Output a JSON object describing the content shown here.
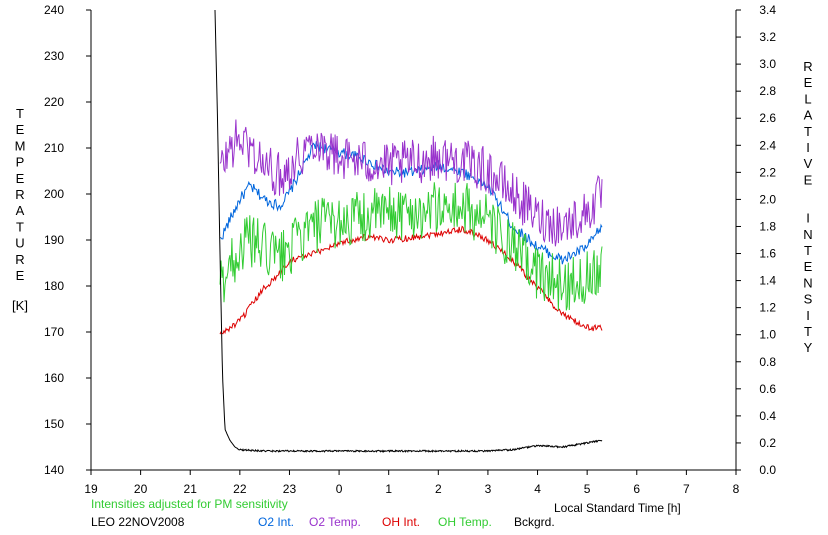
{
  "chart_data": {
    "type": "line",
    "xlabel": "Local Standard Time [h]",
    "x_ticks": [
      "19",
      "20",
      "21",
      "22",
      "23",
      "0",
      "1",
      "2",
      "3",
      "4",
      "5",
      "6",
      "7",
      "8"
    ],
    "ylabel_left": [
      "T",
      "E",
      "M",
      "P",
      "E",
      "R",
      "A",
      "T",
      "U",
      "R",
      "E",
      "",
      "[K]"
    ],
    "ylabel_right": [
      "R",
      "E",
      "L",
      "A",
      "T",
      "I",
      "V",
      "E",
      "",
      "I",
      "N",
      "T",
      "E",
      "N",
      "S",
      "I",
      "T",
      "Y"
    ],
    "ylim_left": [
      140,
      240
    ],
    "ylim_right": [
      0,
      3.4
    ],
    "y_ticks_left": [
      "140",
      "150",
      "160",
      "170",
      "180",
      "190",
      "200",
      "210",
      "220",
      "230",
      "240"
    ],
    "y_ticks_right": [
      "0.0",
      "0.2",
      "0.4",
      "0.6",
      "0.8",
      "1.0",
      "1.2",
      "1.4",
      "1.6",
      "1.8",
      "2.0",
      "2.2",
      "2.4",
      "2.6",
      "2.8",
      "3.0",
      "3.2",
      "3.4"
    ],
    "note": "Intensities adjusted for PM sensitivity",
    "station": "LEO 22NOV2008",
    "grid": false,
    "series": [
      {
        "name": "O2 Int.",
        "axis": "right",
        "color": "#0066dd",
        "x": [
          21.6,
          21.8,
          22.0,
          22.2,
          22.5,
          22.8,
          23.0,
          23.5,
          24.0,
          24.5,
          25.0,
          25.5,
          26.0,
          26.5,
          27.0,
          27.5,
          28.0,
          28.5,
          29.0,
          29.3
        ],
        "y": [
          1.7,
          1.85,
          2.0,
          2.1,
          2.0,
          1.95,
          2.05,
          2.4,
          2.35,
          2.3,
          2.2,
          2.2,
          2.25,
          2.2,
          2.1,
          1.8,
          1.65,
          1.55,
          1.65,
          1.8
        ]
      },
      {
        "name": "O2 Temp.",
        "axis": "left",
        "color": "#9933cc",
        "x": [
          21.6,
          21.8,
          22.0,
          22.2,
          22.5,
          22.8,
          23.0,
          23.5,
          24.0,
          24.5,
          25.0,
          25.5,
          26.0,
          26.5,
          27.0,
          27.5,
          28.0,
          28.5,
          29.0,
          29.3
        ],
        "y": [
          205,
          210,
          212,
          210,
          206,
          204,
          206,
          212,
          208,
          207,
          206,
          207,
          208,
          207,
          205,
          200,
          195,
          193,
          196,
          200
        ]
      },
      {
        "name": "OH Int.",
        "axis": "right",
        "color": "#dd0000",
        "x": [
          21.6,
          21.8,
          22.0,
          22.2,
          22.5,
          22.8,
          23.0,
          23.5,
          24.0,
          24.5,
          25.0,
          25.5,
          26.0,
          26.5,
          27.0,
          27.5,
          28.0,
          28.5,
          29.0,
          29.3
        ],
        "y": [
          1.0,
          1.05,
          1.1,
          1.2,
          1.35,
          1.45,
          1.55,
          1.6,
          1.68,
          1.72,
          1.7,
          1.72,
          1.75,
          1.78,
          1.7,
          1.55,
          1.35,
          1.15,
          1.05,
          1.05
        ]
      },
      {
        "name": "OH Temp.",
        "axis": "left",
        "color": "#33cc33",
        "x": [
          21.6,
          21.8,
          22.0,
          22.2,
          22.5,
          22.8,
          23.0,
          23.5,
          24.0,
          24.5,
          25.0,
          25.5,
          26.0,
          26.5,
          27.0,
          27.5,
          28.0,
          28.5,
          29.0,
          29.3
        ],
        "y": [
          180,
          185,
          188,
          190,
          188,
          186,
          188,
          193,
          194,
          195,
          196,
          196,
          197,
          197,
          194,
          188,
          183,
          180,
          182,
          185
        ]
      },
      {
        "name": "Bckgrd.",
        "axis": "right",
        "color": "#000000",
        "x": [
          21.5,
          21.55,
          21.6,
          21.65,
          21.7,
          21.8,
          21.9,
          22.0,
          22.5,
          23.0,
          24.0,
          25.0,
          26.0,
          27.0,
          27.5,
          28.0,
          28.5,
          29.0,
          29.3
        ],
        "y": [
          3.4,
          2.6,
          1.6,
          0.7,
          0.3,
          0.22,
          0.17,
          0.15,
          0.14,
          0.14,
          0.14,
          0.14,
          0.14,
          0.14,
          0.15,
          0.18,
          0.17,
          0.2,
          0.22
        ]
      }
    ]
  }
}
